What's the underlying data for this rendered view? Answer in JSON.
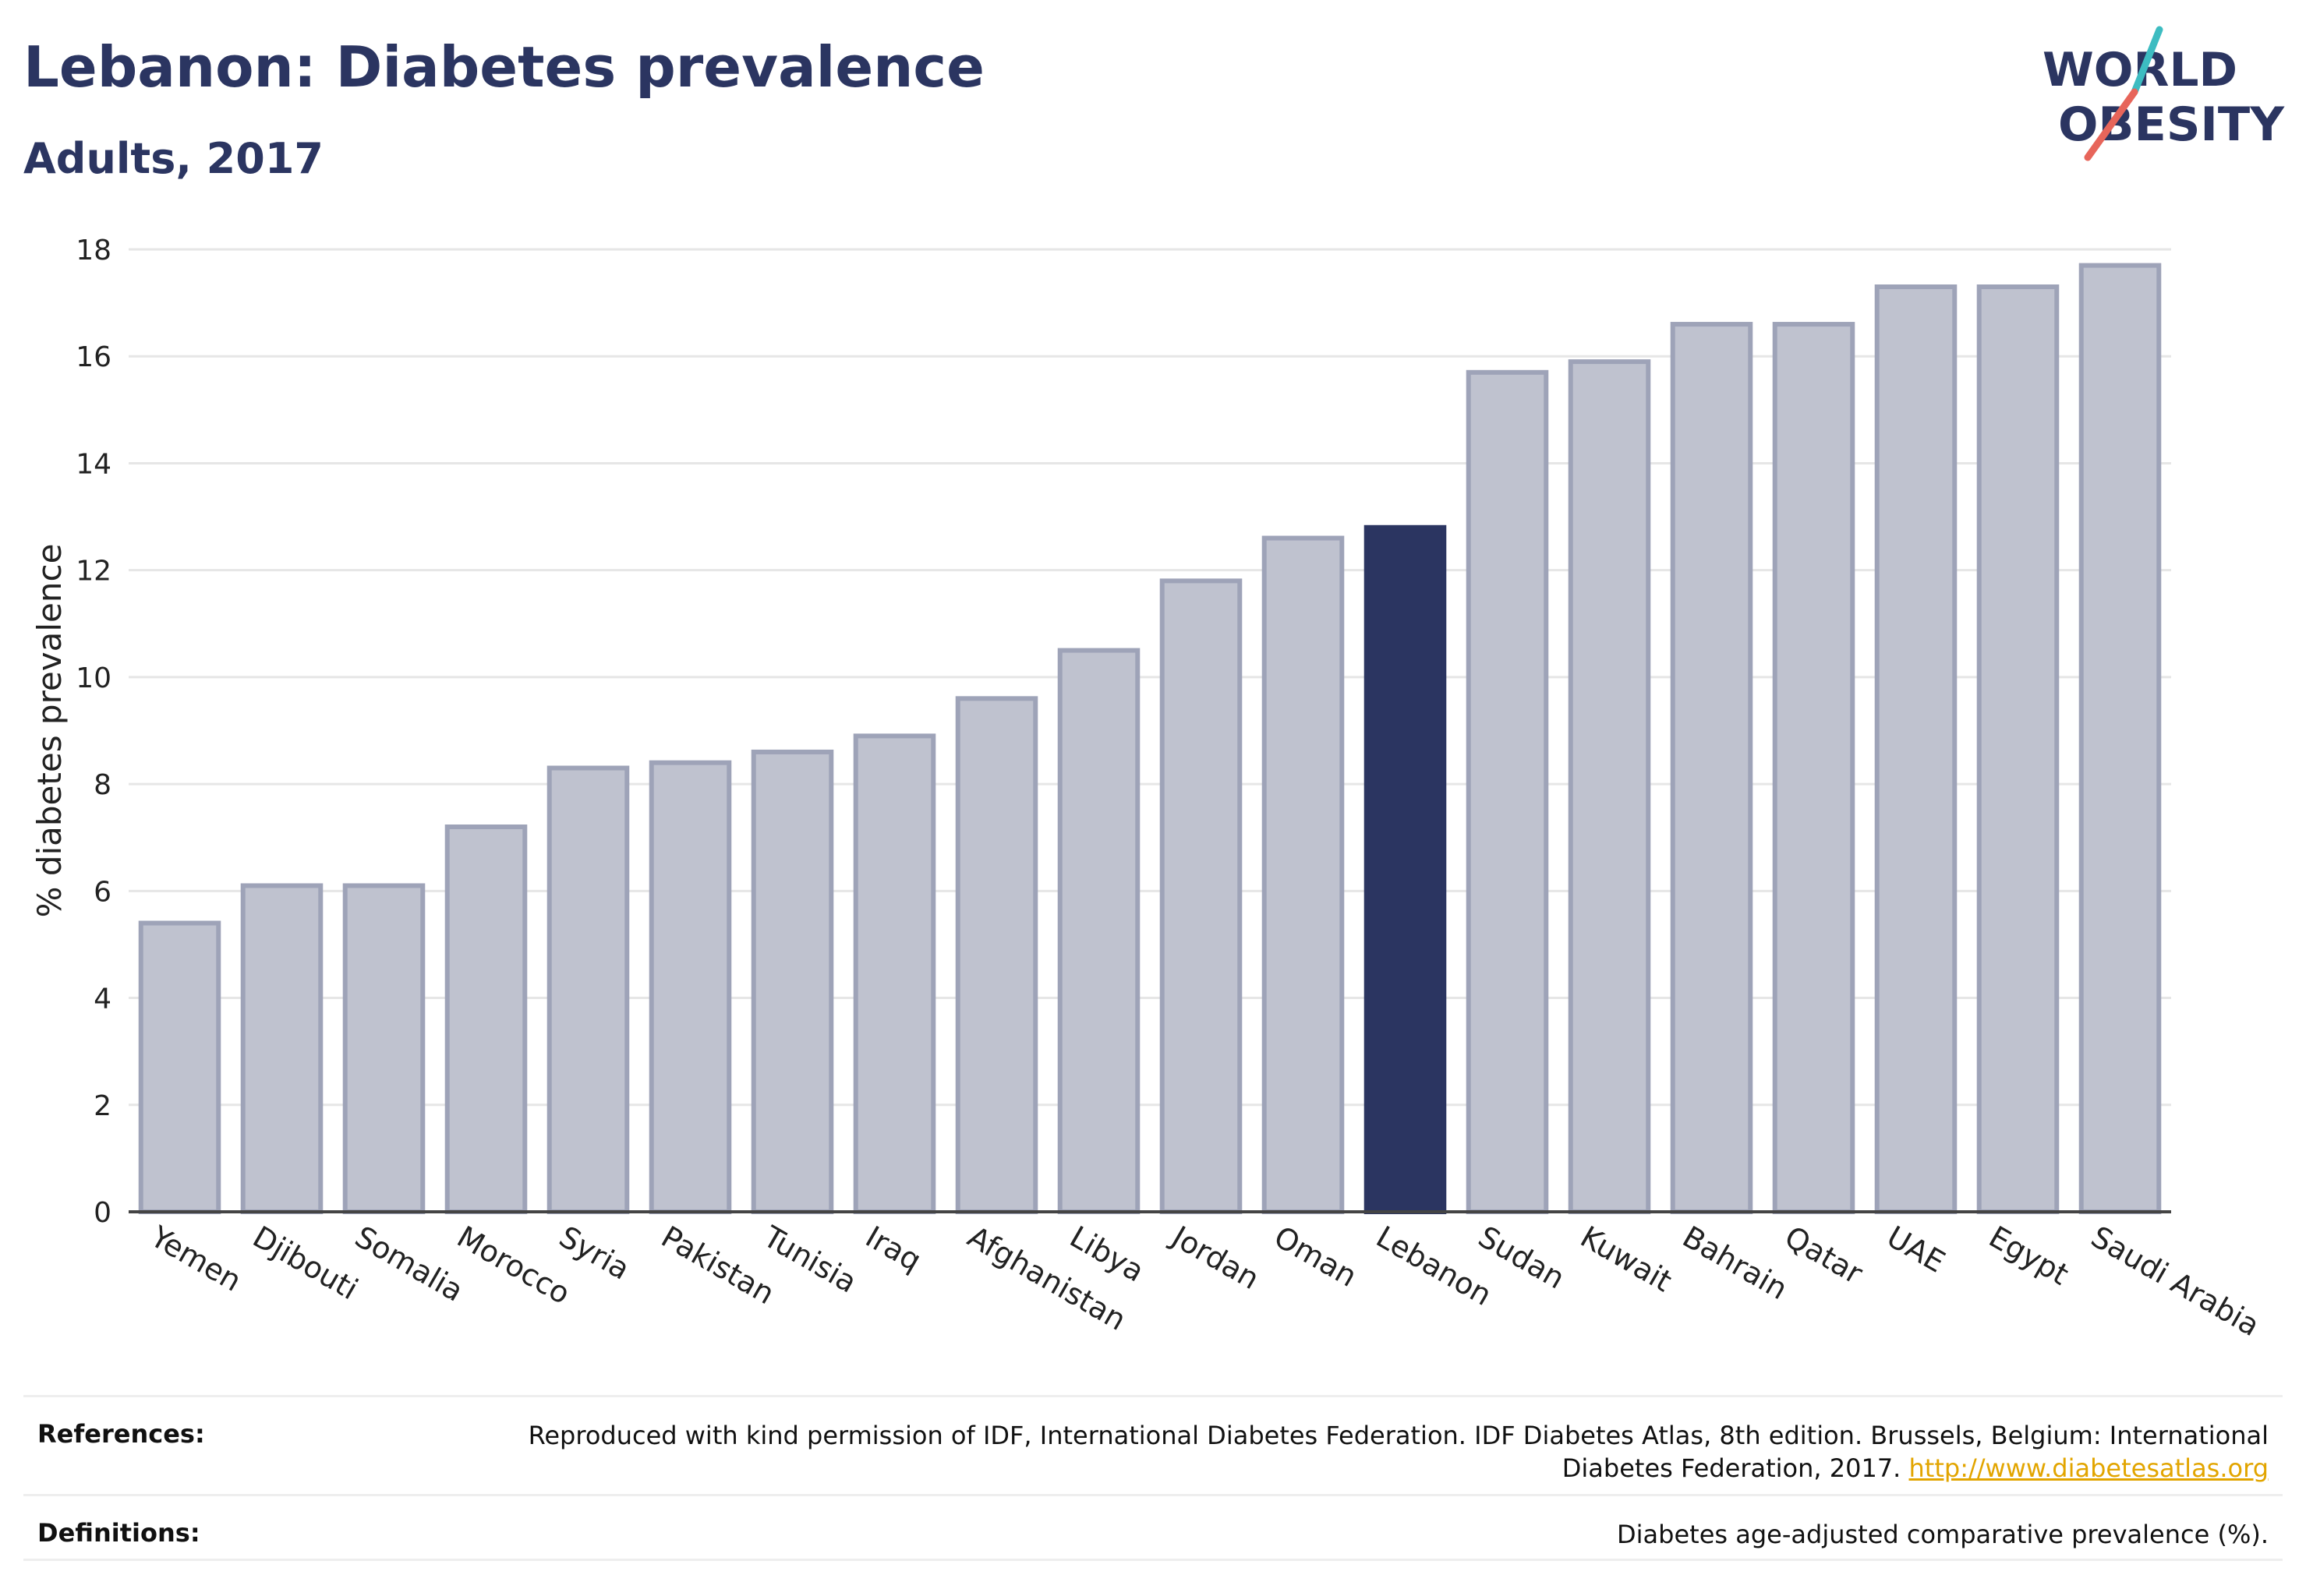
{
  "header": {
    "title": "Lebanon: Diabetes prevalence",
    "subtitle": "Adults, 2017"
  },
  "logo": {
    "line1": "WORLD",
    "line2": "OBESITY",
    "stroke_colors": [
      "#3dbcc1",
      "#e7655a"
    ]
  },
  "chart_data": {
    "type": "bar",
    "categories": [
      "Yemen",
      "Djibouti",
      "Somalia",
      "Morocco",
      "Syria",
      "Pakistan",
      "Tunisia",
      "Iraq",
      "Afghanistan",
      "Libya",
      "Jordan",
      "Oman",
      "Lebanon",
      "Sudan",
      "Kuwait",
      "Bahrain",
      "Qatar",
      "UAE",
      "Egypt",
      "Saudi Arabia"
    ],
    "values": [
      5.4,
      6.1,
      6.1,
      7.2,
      8.3,
      8.4,
      8.6,
      8.9,
      9.6,
      10.5,
      11.8,
      12.6,
      12.8,
      15.7,
      15.9,
      16.6,
      16.6,
      17.3,
      17.3,
      17.7
    ],
    "highlight": "Lebanon",
    "ylabel": "% diabetes prevalence",
    "xlabel": "",
    "ylim": [
      0,
      18
    ],
    "yticks": [
      0,
      2,
      4,
      6,
      8,
      10,
      12,
      14,
      16,
      18
    ],
    "grid": true,
    "colors": {
      "bar": "#bfc2cf",
      "bar_border": "#9ea3b8",
      "highlight": "#2b3561",
      "grid": "#e6e6e6",
      "axis": "#444444"
    }
  },
  "references": {
    "references_label": "References:",
    "references_text": "Reproduced with kind permission of IDF, International Diabetes Federation. IDF Diabetes Atlas, 8th edition. Brussels, Belgium: International Diabetes Federation, 2017.",
    "references_link": "http://www.diabetesatlas.org",
    "definitions_label": "Definitions:",
    "definitions_text": "Diabetes age-adjusted comparative prevalence (%)."
  }
}
